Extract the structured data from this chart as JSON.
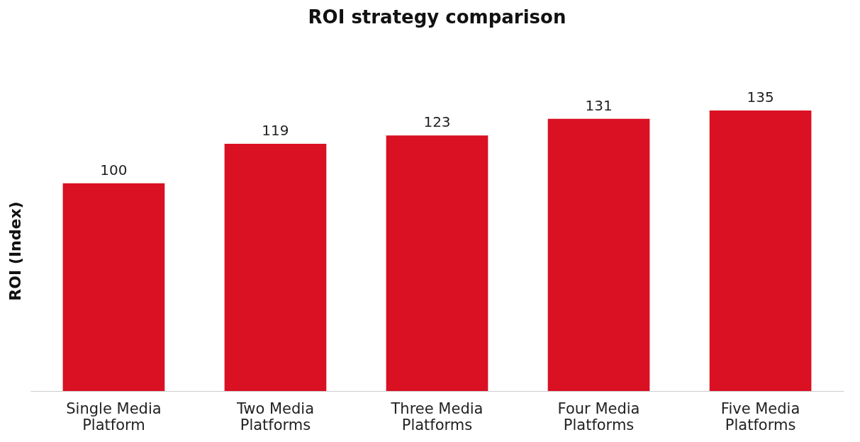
{
  "chart_data": {
    "type": "bar",
    "title": "ROI strategy comparison",
    "ylabel": "ROI (Index)",
    "categories": [
      "Single Media Platform",
      "Two Media Platforms",
      "Three Media Platforms",
      "Four Media Platforms",
      "Five Media Platforms"
    ],
    "values": [
      100,
      119,
      123,
      131,
      135
    ],
    "color": "#da1023",
    "data_labels": true,
    "grid": false
  }
}
